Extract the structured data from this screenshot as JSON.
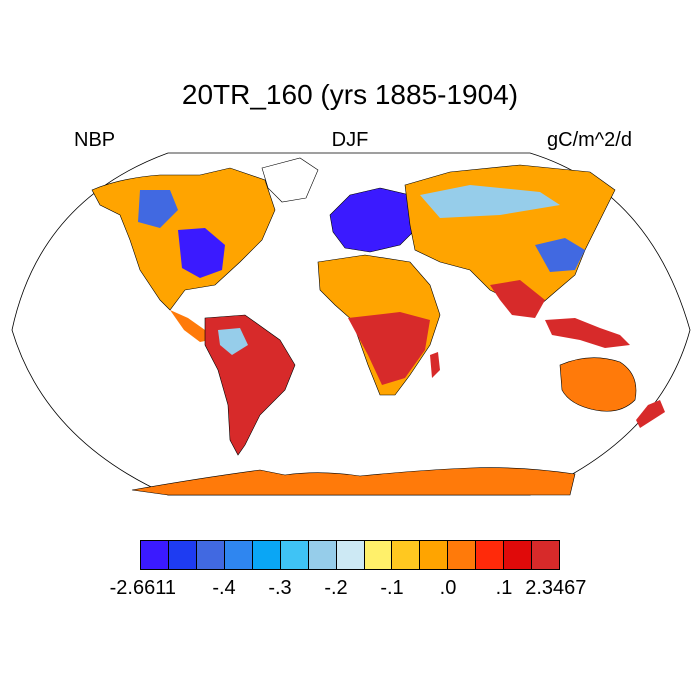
{
  "title": "20TR_160 (yrs 1885-1904)",
  "left_label": "NBP",
  "center_label": "DJF",
  "right_label": "gC/m^2/d",
  "colorbar": {
    "colors": [
      "#3b1aff",
      "#1e3cf2",
      "#4169e1",
      "#2f86f0",
      "#0aa6f5",
      "#3fc3f5",
      "#96cdea",
      "#cde9f4",
      "#fff06a",
      "#ffc820",
      "#ffa400",
      "#ff7a0a",
      "#ff2a0a",
      "#e00a0a",
      "#d72a2a"
    ],
    "ticks": [
      {
        "label": "-2.6611",
        "index": 1
      },
      {
        "label": "-.4",
        "index": 3
      },
      {
        "label": "-.3",
        "index": 5
      },
      {
        "label": "-.2",
        "index": 7
      },
      {
        "label": "-.1",
        "index": 9
      },
      {
        "label": ".0",
        "index": 11
      },
      {
        "label": ".1",
        "index": 13
      },
      {
        "label": "2.3467",
        "index": 14
      }
    ]
  },
  "map": {
    "projection": "Robinson",
    "colors": {
      "ocean": "#ffffff",
      "land_default": "#ffa400",
      "positive_strong": "#d72a2a",
      "positive": "#ff7a0a",
      "negative_strong": "#3b1aff",
      "negative": "#4169e1",
      "near_zero_neg": "#96cdea",
      "greenland": "#ffffff",
      "antarctica": "#ff7a0a"
    }
  }
}
